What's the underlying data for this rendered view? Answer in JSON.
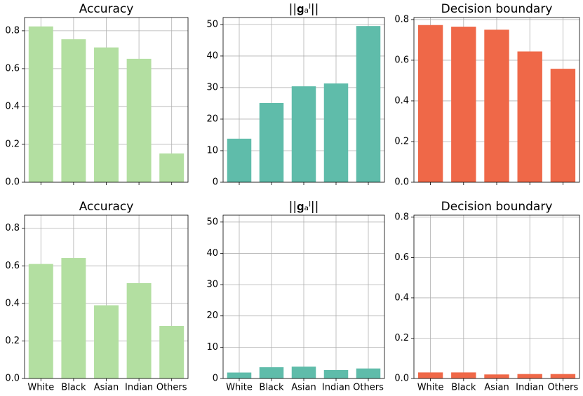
{
  "chart_data": [
    {
      "type": "bar",
      "title": "Accuracy",
      "categories": [
        null,
        null,
        null,
        null,
        null
      ],
      "values": [
        0.823,
        0.755,
        0.712,
        0.652,
        0.152
      ],
      "color": "#b3dfa1",
      "ylim": [
        0,
        0.87
      ],
      "yticks": [
        {
          "value": 0,
          "label": "0.0"
        },
        0.2,
        0.4,
        0.6,
        0.8
      ],
      "grid": true
    },
    {
      "type": "bar",
      "title": "||𝐠ₐˡ||",
      "categories": [
        null,
        null,
        null,
        null,
        null
      ],
      "values": [
        13.8,
        25.1,
        30.4,
        31.3,
        49.5
      ],
      "color": "#5fbcaa",
      "ylim": [
        0,
        52.2
      ],
      "yticks": [
        0,
        10,
        20,
        30,
        40,
        50
      ],
      "grid": true
    },
    {
      "type": "bar",
      "title": "Decision boundary",
      "categories": [
        null,
        null,
        null,
        null,
        null
      ],
      "values": [
        0.773,
        0.765,
        0.75,
        0.643,
        0.558
      ],
      "color": "#ef6848",
      "ylim": [
        0,
        0.81
      ],
      "yticks": [
        {
          "value": 0,
          "label": "0.0"
        },
        0.2,
        0.4,
        0.6,
        0.8
      ],
      "grid": true
    },
    {
      "type": "bar",
      "title": "Accuracy",
      "categories": [
        "White",
        "Black",
        "Asian",
        "Indian",
        "Others"
      ],
      "values": [
        0.61,
        0.642,
        0.39,
        0.508,
        0.28
      ],
      "color": "#b3dfa1",
      "ylim": [
        0,
        0.87
      ],
      "yticks": [
        {
          "value": 0,
          "label": "0.0"
        },
        0.2,
        0.4,
        0.6,
        0.8
      ],
      "grid": true
    },
    {
      "type": "bar",
      "title": "||𝐠ₐˡ||",
      "categories": [
        "White",
        "Black",
        "Asian",
        "Indian",
        "Others"
      ],
      "values": [
        1.9,
        3.6,
        3.8,
        2.7,
        3.2
      ],
      "color": "#5fbcaa",
      "ylim": [
        0,
        52.2
      ],
      "yticks": [
        0,
        10,
        20,
        30,
        40,
        50
      ],
      "grid": true
    },
    {
      "type": "bar",
      "title": "Decision boundary",
      "categories": [
        "White",
        "Black",
        "Asian",
        "Indian",
        "Others"
      ],
      "values": [
        0.03,
        0.03,
        0.02,
        0.022,
        0.022
      ],
      "color": "#ef6848",
      "ylim": [
        0,
        0.81
      ],
      "yticks": [
        {
          "value": 0,
          "label": "0.0"
        },
        0.2,
        0.4,
        0.6,
        0.8
      ],
      "grid": true
    }
  ]
}
